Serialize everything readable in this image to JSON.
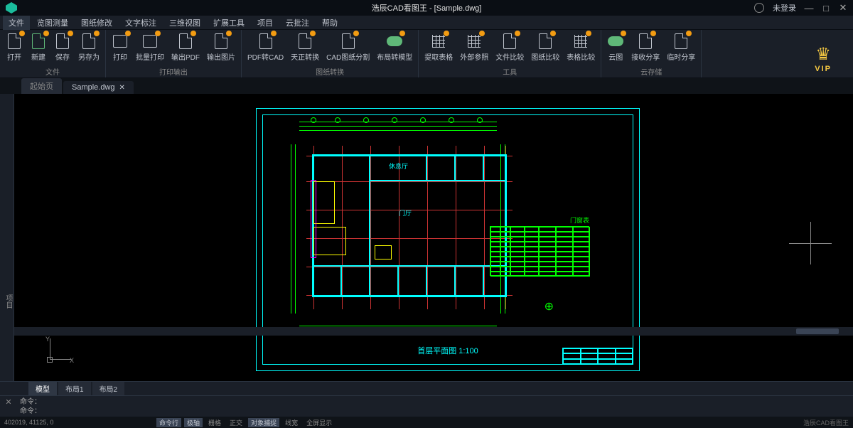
{
  "app": {
    "title": "浩辰CAD看图王 - [Sample.dwg]",
    "login_status": "未登录"
  },
  "menu": {
    "items": [
      "文件",
      "览图测量",
      "图纸修改",
      "文字标注",
      "三维视图",
      "扩展工具",
      "项目",
      "云批注",
      "帮助"
    ],
    "active_index": 0
  },
  "ribbon": {
    "groups": [
      {
        "label": "文件",
        "buttons": [
          {
            "label": "打开",
            "icon": "doc"
          },
          {
            "label": "新建",
            "icon": "doc-green"
          },
          {
            "label": "保存",
            "icon": "doc"
          },
          {
            "label": "另存为",
            "icon": "doc"
          }
        ]
      },
      {
        "label": "打印输出",
        "buttons": [
          {
            "label": "打印",
            "icon": "print"
          },
          {
            "label": "批量打印",
            "icon": "print"
          },
          {
            "label": "输出PDF",
            "icon": "doc"
          },
          {
            "label": "输出图片",
            "icon": "doc"
          }
        ]
      },
      {
        "label": "图纸转换",
        "buttons": [
          {
            "label": "PDF转CAD",
            "icon": "doc"
          },
          {
            "label": "天正转换",
            "icon": "doc"
          },
          {
            "label": "CAD图纸分割",
            "icon": "doc"
          },
          {
            "label": "布局转模型",
            "icon": "cloud"
          }
        ]
      },
      {
        "label": "工具",
        "buttons": [
          {
            "label": "提取表格",
            "icon": "grid"
          },
          {
            "label": "外部参照",
            "icon": "grid"
          },
          {
            "label": "文件比较",
            "icon": "doc"
          },
          {
            "label": "图纸比较",
            "icon": "doc"
          },
          {
            "label": "表格比较",
            "icon": "grid"
          }
        ]
      },
      {
        "label": "云存储",
        "buttons": [
          {
            "label": "云图",
            "icon": "cloud"
          },
          {
            "label": "接收分享",
            "icon": "doc"
          },
          {
            "label": "临时分享",
            "icon": "doc"
          }
        ]
      }
    ],
    "vip_label": "VIP"
  },
  "file_tabs": {
    "tabs": [
      {
        "label": "起始页",
        "active": false
      },
      {
        "label": "Sample.dwg",
        "active": true,
        "closable": true
      }
    ]
  },
  "sidebar_left_label": "项目",
  "drawing": {
    "title": "首层平面图 1:100",
    "room_labels": {
      "lounge": "休息厅",
      "lobby": "门厅"
    },
    "schedule_title": "门窗表",
    "ucs": {
      "x": "X",
      "y": "Y"
    }
  },
  "bottom_tabs": {
    "tabs": [
      "模型",
      "布局1",
      "布局2"
    ],
    "active_index": 0
  },
  "command": {
    "line1": "命令：",
    "line2": "命令："
  },
  "status": {
    "coords": "402019, 41125, 0",
    "toggles": [
      {
        "label": "命令行",
        "on": true
      },
      {
        "label": "极轴",
        "on": true
      },
      {
        "label": "栅格",
        "on": false
      },
      {
        "label": "正交",
        "on": false
      },
      {
        "label": "对象捕捉",
        "on": true
      },
      {
        "label": "线宽",
        "on": false
      },
      {
        "label": "全屏显示",
        "on": false
      }
    ],
    "brand": "浩辰CAD看图王"
  },
  "colors": {
    "cyan": "#00ffff",
    "red": "#cc3333",
    "green": "#00ff00",
    "yellow": "#ffff00",
    "magenta": "#ff00ff"
  }
}
